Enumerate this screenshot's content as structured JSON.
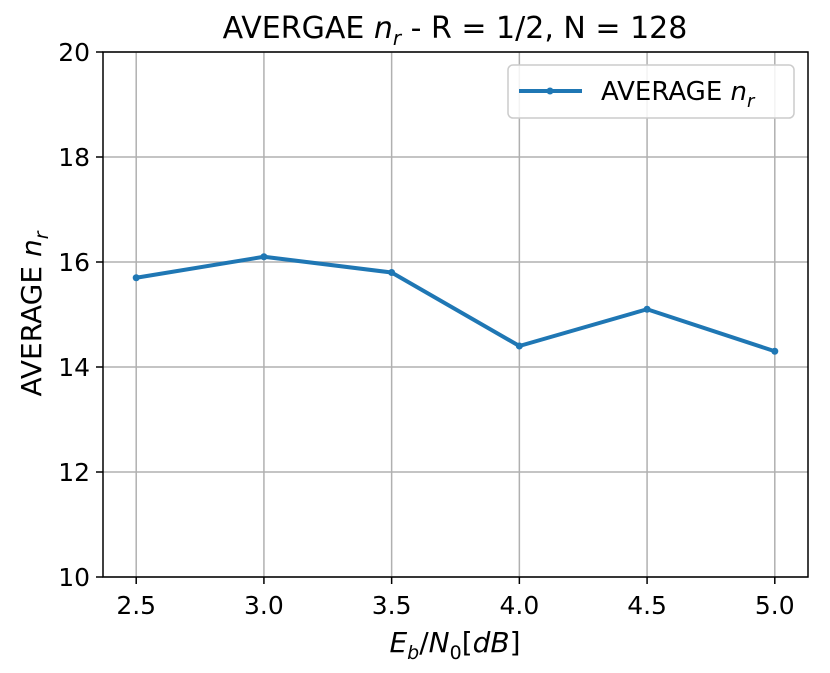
{
  "chart_data": {
    "type": "line",
    "title": {
      "pre": "AVERGAE ",
      "var": "n",
      "sub": "r",
      "post": " - R = 1/2, N = 128"
    },
    "xlabel": {
      "E": "E",
      "b": "b",
      "slash": "/",
      "N": "N",
      "zero": "0",
      "unit_open": "[",
      "unit": "dB",
      "unit_close": "]"
    },
    "ylabel": {
      "pre": "AVERAGE ",
      "var": "n",
      "sub": "r"
    },
    "x": [
      2.5,
      3.0,
      3.5,
      4.0,
      4.5,
      5.0
    ],
    "xticks": [
      "2.5",
      "3.0",
      "3.5",
      "4.0",
      "4.5",
      "5.0"
    ],
    "yticks": [
      "10",
      "12",
      "14",
      "16",
      "18",
      "20"
    ],
    "xlim": [
      2.37,
      5.13
    ],
    "ylim": [
      10,
      20
    ],
    "grid": true,
    "legend_position": "top-right",
    "series": [
      {
        "name": {
          "pre": "AVERAGE ",
          "var": "n",
          "sub": "r"
        },
        "values": [
          15.7,
          16.1,
          15.8,
          14.4,
          15.1,
          14.3
        ],
        "color": "#1f77b4"
      }
    ]
  }
}
